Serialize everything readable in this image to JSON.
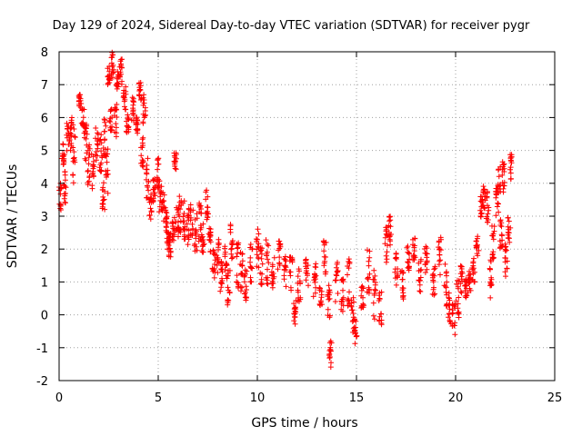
{
  "chart_data": {
    "type": "scatter",
    "title": "Day 129 of 2024, Sidereal Day-to-day VTEC variation (SDTVAR) for receiver pygr",
    "xlabel": "GPS time / hours",
    "ylabel": "SDTVAR / TECUs",
    "xlim": [
      0,
      25
    ],
    "ylim": [
      -2,
      8
    ],
    "xticks": [
      0,
      5,
      10,
      15,
      20,
      25
    ],
    "yticks": [
      -2,
      -1,
      0,
      1,
      2,
      3,
      4,
      5,
      6,
      7,
      8
    ],
    "grid": true,
    "marker": "+",
    "series": [
      {
        "name": "SDTVAR",
        "color": "#ff0000",
        "clusters": [
          [
            0.05,
            3.5,
            0.5
          ],
          [
            0.2,
            4.9,
            0.4
          ],
          [
            0.3,
            3.9,
            0.5
          ],
          [
            0.45,
            5.3,
            0.6
          ],
          [
            0.6,
            5.5,
            0.5
          ],
          [
            0.75,
            5.0,
            1.0
          ],
          [
            1.05,
            6.5,
            0.2
          ],
          [
            1.2,
            5.9,
            0.4
          ],
          [
            1.35,
            5.2,
            0.6
          ],
          [
            1.5,
            4.6,
            0.7
          ],
          [
            1.7,
            4.3,
            0.6
          ],
          [
            1.9,
            5.2,
            0.5
          ],
          [
            2.1,
            4.9,
            0.6
          ],
          [
            2.25,
            3.6,
            0.5
          ],
          [
            2.3,
            5.4,
            0.6
          ],
          [
            2.4,
            4.3,
            0.8
          ],
          [
            2.5,
            7.3,
            0.3
          ],
          [
            2.6,
            6.0,
            0.4
          ],
          [
            2.7,
            7.6,
            0.4
          ],
          [
            2.85,
            5.9,
            0.5
          ],
          [
            2.95,
            7.1,
            0.3
          ],
          [
            3.1,
            7.4,
            0.4
          ],
          [
            3.3,
            6.6,
            0.4
          ],
          [
            3.45,
            5.8,
            0.3
          ],
          [
            3.7,
            6.3,
            0.4
          ],
          [
            3.95,
            5.8,
            0.3
          ],
          [
            4.1,
            6.8,
            0.3
          ],
          [
            4.2,
            5.0,
            0.5
          ],
          [
            4.3,
            6.3,
            0.5
          ],
          [
            4.45,
            4.2,
            0.7
          ],
          [
            4.6,
            3.3,
            0.4
          ],
          [
            4.8,
            3.8,
            0.4
          ],
          [
            4.95,
            4.3,
            0.5
          ],
          [
            5.1,
            3.6,
            0.5
          ],
          [
            5.25,
            3.3,
            0.5
          ],
          [
            5.4,
            2.9,
            0.4
          ],
          [
            5.5,
            2.3,
            0.3
          ],
          [
            5.6,
            2.1,
            0.4
          ],
          [
            5.75,
            2.6,
            0.4
          ],
          [
            5.85,
            4.7,
            0.3
          ],
          [
            5.95,
            2.8,
            0.5
          ],
          [
            6.1,
            3.1,
            0.6
          ],
          [
            6.3,
            2.9,
            0.6
          ],
          [
            6.5,
            2.7,
            0.6
          ],
          [
            6.7,
            2.9,
            0.5
          ],
          [
            6.9,
            2.5,
            0.6
          ],
          [
            7.1,
            2.8,
            0.6
          ],
          [
            7.25,
            2.3,
            0.5
          ],
          [
            7.45,
            3.4,
            0.5
          ],
          [
            7.6,
            2.3,
            0.4
          ],
          [
            7.8,
            1.6,
            0.5
          ],
          [
            8.0,
            1.8,
            0.6
          ],
          [
            8.2,
            1.2,
            0.5
          ],
          [
            8.4,
            1.7,
            0.6
          ],
          [
            8.55,
            0.9,
            0.6
          ],
          [
            8.7,
            2.3,
            0.6
          ],
          [
            9.0,
            1.5,
            0.7
          ],
          [
            9.2,
            1.3,
            0.6
          ],
          [
            9.4,
            0.9,
            0.5
          ],
          [
            9.7,
            1.6,
            0.6
          ],
          [
            10.0,
            2.0,
            0.7
          ],
          [
            10.2,
            1.5,
            0.6
          ],
          [
            10.5,
            1.6,
            0.7
          ],
          [
            10.8,
            1.2,
            0.6
          ],
          [
            11.1,
            1.8,
            0.5
          ],
          [
            11.4,
            1.4,
            0.6
          ],
          [
            11.7,
            1.3,
            0.6
          ],
          [
            11.9,
            0.2,
            0.5
          ],
          [
            12.1,
            0.8,
            0.6
          ],
          [
            12.5,
            1.3,
            0.5
          ],
          [
            12.9,
            1.0,
            0.6
          ],
          [
            13.2,
            0.7,
            0.5
          ],
          [
            13.4,
            1.8,
            0.6
          ],
          [
            13.6,
            0.4,
            0.5
          ],
          [
            13.7,
            -1.2,
            0.4
          ],
          [
            14.0,
            1.0,
            0.6
          ],
          [
            14.3,
            0.6,
            0.5
          ],
          [
            14.6,
            0.9,
            0.8
          ],
          [
            14.8,
            0.0,
            0.6
          ],
          [
            14.95,
            -0.5,
            0.4
          ],
          [
            15.3,
            0.6,
            0.4
          ],
          [
            15.6,
            1.3,
            0.7
          ],
          [
            15.9,
            0.6,
            0.8
          ],
          [
            16.2,
            0.2,
            0.5
          ],
          [
            16.5,
            2.1,
            0.6
          ],
          [
            16.7,
            2.5,
            0.5
          ],
          [
            17.0,
            1.4,
            0.5
          ],
          [
            17.3,
            0.8,
            0.7
          ],
          [
            17.6,
            1.8,
            0.5
          ],
          [
            17.9,
            2.0,
            0.4
          ],
          [
            18.2,
            1.2,
            0.6
          ],
          [
            18.5,
            1.6,
            0.5
          ],
          [
            18.9,
            1.0,
            0.5
          ],
          [
            19.2,
            1.8,
            0.6
          ],
          [
            19.5,
            0.9,
            0.7
          ],
          [
            19.7,
            0.2,
            0.6
          ],
          [
            19.9,
            -0.1,
            0.5
          ],
          [
            20.1,
            0.5,
            0.6
          ],
          [
            20.3,
            1.0,
            0.5
          ],
          [
            20.5,
            0.8,
            0.3
          ],
          [
            20.7,
            1.0,
            0.4
          ],
          [
            20.9,
            1.5,
            0.5
          ],
          [
            21.1,
            2.1,
            0.3
          ],
          [
            21.3,
            3.1,
            0.5
          ],
          [
            21.45,
            3.6,
            0.4
          ],
          [
            21.6,
            3.3,
            0.5
          ],
          [
            21.75,
            1.1,
            0.6
          ],
          [
            21.9,
            2.2,
            0.6
          ],
          [
            22.1,
            3.4,
            0.5
          ],
          [
            22.2,
            4.1,
            0.4
          ],
          [
            22.3,
            2.4,
            0.5
          ],
          [
            22.4,
            4.2,
            0.5
          ],
          [
            22.55,
            1.6,
            0.6
          ],
          [
            22.7,
            2.6,
            0.4
          ],
          [
            22.8,
            4.5,
            0.4
          ]
        ]
      }
    ]
  }
}
